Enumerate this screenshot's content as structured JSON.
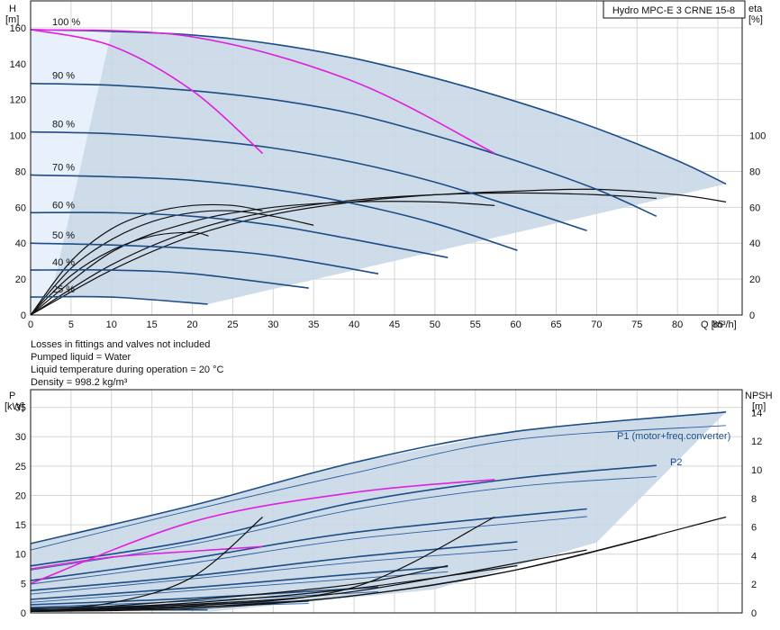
{
  "chart_data": [
    {
      "type": "line",
      "product": "Hydro MPC-E 3 CRNE 15-8",
      "y_label": "H",
      "y_unit": "[m]",
      "y2_label": "eta",
      "y2_unit": "[%]",
      "x_label": "Q [m³/h]",
      "xlim": [
        0,
        88
      ],
      "ylim": [
        0,
        175
      ],
      "x_ticks": [
        "0",
        "5",
        "10",
        "15",
        "20",
        "25",
        "30",
        "35",
        "40",
        "45",
        "50",
        "55",
        "60",
        "65",
        "70",
        "75",
        "80",
        "85"
      ],
      "y_ticks": [
        "0",
        "20",
        "40",
        "60",
        "80",
        "100",
        "120",
        "140",
        "160"
      ],
      "y2_ticks": [
        "0",
        "20",
        "40",
        "60",
        "80",
        "100"
      ],
      "grid": true,
      "speed_labels": [
        "100 %",
        "90 %",
        "80 %",
        "70 %",
        "60 %",
        "50 %",
        "40 %",
        "25 %"
      ],
      "qh_curves": [
        {
          "speed": 100,
          "x": [
            0,
            10,
            20,
            30,
            40,
            50,
            60,
            70,
            80,
            86
          ],
          "y": [
            159,
            158,
            156,
            151,
            143,
            132,
            119,
            104,
            86,
            73
          ]
        },
        {
          "speed": 90,
          "x": [
            0,
            10,
            20,
            30,
            40,
            50,
            60,
            70,
            77.4
          ],
          "y": [
            129,
            128,
            125,
            120,
            112,
            100,
            86,
            70,
            55
          ]
        },
        {
          "speed": 80,
          "x": [
            0,
            10,
            20,
            30,
            40,
            50,
            60,
            68.8
          ],
          "y": [
            102,
            101,
            98,
            93,
            85,
            74,
            60,
            47
          ]
        },
        {
          "speed": 70,
          "x": [
            0,
            10,
            20,
            30,
            40,
            50,
            60.2
          ],
          "y": [
            78,
            77,
            75,
            70,
            62,
            51,
            36
          ]
        },
        {
          "speed": 60,
          "x": [
            0,
            10,
            20,
            30,
            40,
            51.6
          ],
          "y": [
            57,
            57,
            55,
            50,
            42,
            32
          ]
        },
        {
          "speed": 50,
          "x": [
            0,
            10,
            20,
            30,
            43
          ],
          "y": [
            40,
            39,
            37,
            33,
            23
          ]
        },
        {
          "speed": 40,
          "x": [
            0,
            10,
            20,
            34.4
          ],
          "y": [
            25,
            25,
            23,
            15
          ]
        },
        {
          "speed": 25,
          "x": [
            0,
            10,
            21.9
          ],
          "y": [
            10,
            10,
            6
          ]
        }
      ],
      "single_pump_curves": [
        {
          "x": [
            0,
            10,
            20,
            28.7
          ],
          "y": [
            159,
            150,
            125,
            90
          ]
        },
        {
          "x": [
            0,
            20,
            40,
            57.4
          ],
          "y": [
            159,
            155,
            130,
            90
          ]
        }
      ],
      "eta_curves": [
        {
          "x": [
            0,
            5,
            10,
            15,
            20,
            25,
            28.7
          ],
          "y": [
            0,
            30,
            48,
            57,
            61,
            61,
            58
          ]
        },
        {
          "x": [
            0,
            10,
            20,
            30,
            40,
            50,
            57.4
          ],
          "y": [
            0,
            35,
            52,
            60,
            63,
            63,
            61
          ]
        },
        {
          "x": [
            0,
            10,
            20,
            30,
            40,
            50,
            60,
            70,
            77.4
          ],
          "y": [
            0,
            28,
            47,
            58,
            64,
            67,
            68,
            67,
            65
          ]
        },
        {
          "x": [
            0,
            10,
            20,
            30,
            40,
            50,
            60,
            70,
            80,
            86
          ],
          "y": [
            0,
            25,
            44,
            56,
            63,
            67,
            69,
            70,
            67,
            63
          ]
        },
        {
          "x": [
            0,
            5,
            10,
            15,
            20,
            25,
            30,
            35
          ],
          "y": [
            0,
            26,
            42,
            52,
            57,
            58,
            55,
            50
          ]
        },
        {
          "x": [
            0,
            5,
            10,
            15,
            20,
            22
          ],
          "y": [
            0,
            22,
            36,
            44,
            46,
            44
          ]
        }
      ],
      "efficiency_band_edge": {
        "x": [
          10,
          15,
          25,
          35,
          45,
          55,
          65,
          75,
          86
        ],
        "y": [
          158,
          145,
          120,
          95,
          75,
          55,
          40,
          28,
          12
        ]
      },
      "notes": [
        "Losses in fittings and valves not included",
        "Pumped liquid = Water",
        "Liquid temperature during operation = 20 °C",
        "Density = 998.2 kg/m³"
      ]
    },
    {
      "type": "line",
      "y_label": "P",
      "y_unit": "[kW]",
      "y2_label": "NPSH",
      "y2_unit": "[m]",
      "xlim": [
        0,
        88
      ],
      "ylim": [
        0,
        38
      ],
      "y_ticks": [
        "0",
        "5",
        "10",
        "15",
        "20",
        "25",
        "30",
        "35"
      ],
      "y2_ticks": [
        "0",
        "2",
        "4",
        "6",
        "8",
        "10",
        "12",
        "14"
      ],
      "y2_lim": [
        0,
        15.6
      ],
      "series_labels": [
        "P1 (motor+freq.converter)",
        "P2"
      ],
      "p1_curves": [
        {
          "x": [
            0,
            20,
            40,
            60,
            86
          ],
          "y": [
            11.8,
            18.3,
            25.6,
            30.9,
            34.2
          ]
        },
        {
          "x": [
            0,
            20,
            40,
            60,
            77.4
          ],
          "y": [
            8.0,
            12.3,
            18.8,
            22.9,
            25.1
          ]
        },
        {
          "x": [
            0,
            20,
            40,
            68.8
          ],
          "y": [
            5.5,
            9.3,
            13.7,
            17.7
          ]
        },
        {
          "x": [
            0,
            20,
            40,
            60.2
          ],
          "y": [
            3.8,
            6.3,
            9.5,
            12.1
          ]
        },
        {
          "x": [
            0,
            20,
            40,
            51.6
          ],
          "y": [
            2.3,
            4.3,
            6.6,
            7.9
          ]
        },
        {
          "x": [
            0,
            20,
            43
          ],
          "y": [
            1.4,
            2.5,
            4.4
          ]
        },
        {
          "x": [
            0,
            20,
            34.4
          ],
          "y": [
            0.8,
            1.4,
            2.0
          ]
        },
        {
          "x": [
            0,
            10,
            21.9
          ],
          "y": [
            0.5,
            0.5,
            0.5
          ]
        }
      ],
      "p2_curves": [
        {
          "x": [
            0,
            20,
            40,
            60,
            86
          ],
          "y": [
            10.7,
            17.5,
            23.8,
            29.5,
            31.9
          ]
        },
        {
          "x": [
            0,
            20,
            40,
            60,
            77.4
          ],
          "y": [
            7.3,
            11.7,
            17.6,
            21.5,
            23.2
          ]
        },
        {
          "x": [
            0,
            20,
            40,
            68.8
          ],
          "y": [
            4.9,
            8.5,
            12.6,
            16.4
          ]
        },
        {
          "x": [
            0,
            20,
            40,
            60.2
          ],
          "y": [
            3.2,
            5.8,
            8.6,
            10.8
          ]
        },
        {
          "x": [
            0,
            20,
            40,
            51.6
          ],
          "y": [
            1.8,
            3.8,
            5.8,
            7.0
          ]
        },
        {
          "x": [
            0,
            20,
            43
          ],
          "y": [
            1.0,
            2.0,
            3.6
          ]
        },
        {
          "x": [
            0,
            20,
            34.4
          ],
          "y": [
            0.6,
            1.1,
            1.6
          ]
        }
      ],
      "single_pump_power": [
        {
          "x": [
            0,
            10,
            20,
            28.7
          ],
          "y": [
            7.5,
            9.5,
            10.5,
            11.3
          ]
        },
        {
          "x": [
            0,
            20,
            40,
            57.4
          ],
          "y": [
            5.0,
            15.5,
            20.5,
            22.7
          ]
        }
      ],
      "npsh_curves": [
        {
          "x": [
            0,
            10,
            20,
            28.7
          ],
          "y": [
            0.3,
            0.7,
            2.5,
            6.7
          ]
        },
        {
          "x": [
            0,
            20,
            40,
            57.4
          ],
          "y": [
            0.2,
            0.5,
            1.8,
            6.7
          ]
        },
        {
          "x": [
            0,
            20,
            40,
            60,
            86
          ],
          "y": [
            0.1,
            0.3,
            1.2,
            3.0,
            6.7
          ]
        },
        {
          "x": [
            0,
            20,
            40,
            60,
            77.4
          ],
          "y": [
            0.1,
            0.4,
            1.2,
            3.0,
            5.4
          ]
        },
        {
          "x": [
            0,
            20,
            40,
            68.8
          ],
          "y": [
            0.1,
            0.6,
            1.5,
            4.4
          ]
        },
        {
          "x": [
            0,
            20,
            40,
            60.2
          ],
          "y": [
            0.1,
            0.7,
            1.7,
            3.3
          ]
        },
        {
          "x": [
            0,
            20,
            40,
            51.6
          ],
          "y": [
            0.1,
            0.9,
            2.0,
            3.3
          ]
        }
      ]
    }
  ]
}
